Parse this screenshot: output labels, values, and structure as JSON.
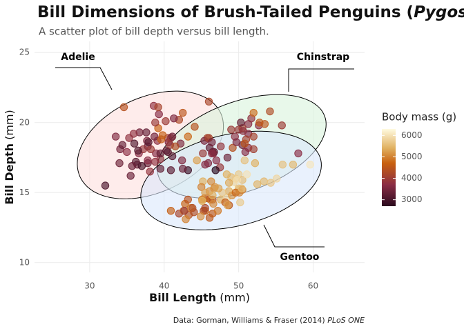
{
  "chart_data": {
    "type": "scatter",
    "title": "Bill Dimensions of Brush-Tailed Penguins (",
    "title_italic": "Pygoscelis",
    "subtitle": "A scatter plot of bill depth versus bill length.",
    "x_label": "Bill Length",
    "x_unit": " (mm)",
    "y_label": "Bill Depth",
    "y_unit": " (mm)",
    "caption": "Data: Gorman, Williams & Fraser (2014) ",
    "caption_italic": "PLoS ONE",
    "color_label": "Body mass (g)",
    "xlim": [
      22.6,
      66.9
    ],
    "xticks": [
      30,
      40,
      50,
      60
    ],
    "ylim": [
      9.3,
      25.8
    ],
    "yticks": [
      10,
      15,
      20,
      25
    ],
    "clim": [
      2700,
      6300
    ],
    "cticks": [
      3000,
      4000,
      5000,
      6000
    ],
    "colorscale": [
      [
        2700,
        "#2a0a1e"
      ],
      [
        3700,
        "#8a2d45"
      ],
      [
        4700,
        "#c8600f"
      ],
      [
        5400,
        "#e0b060"
      ],
      [
        6300,
        "#fffae0"
      ]
    ],
    "grid": true,
    "series": [
      {
        "name": "Adelie",
        "ellipse_color": "#fde0dd",
        "ellipse": {
          "center": [
            38.15,
            18.4
          ],
          "axis1": [
            9.26,
            2.46
          ],
          "axis2": [
            3.24,
            -2.96
          ]
        },
        "x": [
          36.7,
          39.1,
          39.5,
          40.3,
          39.3,
          38.9,
          39.2,
          34.1,
          42.0,
          37.8,
          37.8,
          41.1,
          38.6,
          34.6,
          36.6,
          38.7,
          42.5,
          34.4,
          46.0,
          37.8,
          37.7,
          35.9,
          38.2,
          38.8,
          35.3,
          40.6,
          40.5,
          37.9,
          40.5,
          39.5,
          37.2,
          39.5,
          40.9,
          36.4,
          39.2,
          38.8,
          42.2,
          37.6,
          39.8,
          36.5,
          40.8,
          36.0,
          44.1,
          37.0,
          39.6,
          41.1,
          36.2,
          33.5,
          32.1,
          35.7,
          41.3,
          43.2,
          34.0,
          41.5,
          35.0,
          38.1,
          45.8,
          40.2,
          35.5
        ],
        "y": [
          19.3,
          18.7,
          17.4,
          18.0,
          20.6,
          17.8,
          19.6,
          18.1,
          20.2,
          17.1,
          17.3,
          17.6,
          21.2,
          21.1,
          17.8,
          19.0,
          20.7,
          18.4,
          21.5,
          18.3,
          18.7,
          19.2,
          18.1,
          17.2,
          18.9,
          18.6,
          17.9,
          18.6,
          18.9,
          16.7,
          18.1,
          17.8,
          18.9,
          17.0,
          21.1,
          20.0,
          18.5,
          19.3,
          19.1,
          18.0,
          18.4,
          18.5,
          19.7,
          16.9,
          18.8,
          19.0,
          17.2,
          19.0,
          15.5,
          16.9,
          20.3,
          19.0,
          17.1,
          18.3,
          17.9,
          16.5,
          18.9,
          20.1,
          16.2
        ],
        "mass": [
          3450,
          3750,
          3800,
          3250,
          3650,
          3625,
          4675,
          3475,
          4250,
          3300,
          3700,
          3200,
          3800,
          4400,
          3700,
          3450,
          4500,
          3325,
          4200,
          3400,
          3600,
          3800,
          3950,
          3800,
          3800,
          3550,
          3200,
          3150,
          3950,
          3250,
          3900,
          3300,
          3900,
          3325,
          4150,
          3950,
          3550,
          3300,
          4650,
          3150,
          3900,
          3100,
          4400,
          3000,
          4600,
          3425,
          3150,
          3600,
          3050,
          3350,
          3550,
          4775,
          3400,
          4300,
          3725,
          3825,
          4150,
          3975,
          3350
        ]
      },
      {
        "name": "Chinstrap",
        "ellipse_color": "#d8f3dc",
        "ellipse": {
          "center": [
            50.4,
            18.3
          ],
          "axis1": [
            11.1,
            2.22
          ],
          "axis2": [
            2.31,
            -2.96
          ]
        },
        "x": [
          46.5,
          50.0,
          51.3,
          45.4,
          52.7,
          45.2,
          46.1,
          51.3,
          46.0,
          51.3,
          46.6,
          51.7,
          47.0,
          52.0,
          45.9,
          50.5,
          50.3,
          58.0,
          46.4,
          49.2,
          42.4,
          48.5,
          43.2,
          50.6,
          46.7,
          52.0,
          50.5,
          49.5,
          46.4,
          52.8,
          40.9,
          54.2,
          42.5,
          51.0,
          49.7,
          47.5,
          47.6,
          52.0,
          46.9,
          53.5,
          49.0,
          45.5,
          50.9,
          50.8,
          55.8
        ],
        "y": [
          17.9,
          19.5,
          19.2,
          18.7,
          19.8,
          17.8,
          18.2,
          18.2,
          18.9,
          19.9,
          17.8,
          20.3,
          17.3,
          18.1,
          17.1,
          19.6,
          20.0,
          17.8,
          18.6,
          18.2,
          17.3,
          17.5,
          16.6,
          19.4,
          17.9,
          19.0,
          18.4,
          19.0,
          17.8,
          20.0,
          16.6,
          20.8,
          16.7,
          18.8,
          18.6,
          16.8,
          18.3,
          20.7,
          16.6,
          19.9,
          19.5,
          17.0,
          17.9,
          18.5,
          19.8
        ],
        "mass": [
          3500,
          3900,
          3650,
          3525,
          3725,
          3950,
          3250,
          3750,
          4150,
          3700,
          3800,
          3775,
          3700,
          4050,
          3575,
          4050,
          3300,
          3700,
          3450,
          4400,
          3600,
          3400,
          2900,
          3800,
          3300,
          4150,
          3400,
          3800,
          3700,
          4550,
          3200,
          4300,
          3350,
          4100,
          3600,
          3900,
          3850,
          4800,
          2700,
          4500,
          3950,
          3650,
          3675,
          4450,
          4000
        ]
      },
      {
        "name": "Gentoo",
        "ellipse_color": "#dbe8fb",
        "ellipse": {
          "center": [
            48.98,
            15.86
          ],
          "axis1": [
            12.04,
            1.48
          ],
          "axis2": [
            1.39,
            -3.2
          ]
        },
        "x": [
          46.1,
          50.0,
          48.7,
          50.0,
          47.6,
          46.5,
          45.4,
          46.7,
          43.3,
          46.8,
          40.9,
          49.0,
          45.5,
          48.4,
          45.8,
          49.3,
          42.0,
          49.2,
          46.2,
          48.7,
          50.2,
          45.1,
          46.5,
          46.3,
          42.9,
          46.1,
          47.8,
          48.2,
          50.0,
          47.3,
          42.8,
          45.1,
          59.6,
          49.1,
          48.4,
          42.6,
          44.4,
          44.0,
          48.7,
          42.7,
          49.6,
          45.3,
          49.6,
          50.5,
          43.6,
          45.5,
          50.5,
          44.9,
          45.2,
          46.6,
          48.5,
          45.1,
          50.1,
          46.5,
          45.0,
          43.8,
          45.5,
          43.2,
          50.4,
          53.4,
          55.1,
          52.5,
          51.1,
          47.2,
          54.3,
          57.3,
          55.9,
          49.8,
          52.2,
          50.8
        ],
        "y": [
          13.2,
          16.3,
          14.1,
          15.2,
          14.5,
          13.5,
          14.6,
          15.3,
          13.4,
          15.4,
          13.7,
          16.1,
          13.7,
          14.6,
          14.6,
          15.7,
          13.5,
          15.2,
          14.5,
          15.1,
          14.3,
          14.5,
          14.5,
          15.8,
          13.1,
          15.1,
          15.0,
          14.3,
          15.3,
          15.3,
          14.2,
          14.5,
          17.0,
          14.8,
          16.3,
          13.7,
          17.3,
          13.6,
          15.7,
          13.7,
          16.0,
          13.7,
          15.0,
          15.9,
          13.9,
          13.9,
          15.2,
          13.3,
          15.8,
          14.2,
          14.1,
          14.4,
          15.0,
          14.8,
          15.4,
          13.9,
          15.0,
          14.5,
          15.3,
          15.8,
          16.0,
          15.6,
          16.3,
          13.7,
          15.7,
          17.0,
          17.0,
          15.9,
          17.1,
          17.3
        ],
        "mass": [
          4500,
          5700,
          4450,
          5700,
          5400,
          4550,
          4800,
          5200,
          4400,
          5150,
          4650,
          5550,
          4650,
          5850,
          4200,
          5850,
          4150,
          6300,
          4800,
          5350,
          5700,
          5000,
          4400,
          5050,
          5000,
          5100,
          5650,
          4600,
          5550,
          5250,
          4700,
          5050,
          6050,
          5150,
          5400,
          4950,
          5250,
          4350,
          5350,
          3950,
          5700,
          4300,
          4750,
          5550,
          4900,
          4200,
          5000,
          5100,
          5400,
          5050,
          5250,
          5400,
          5000,
          5400,
          5000,
          4300,
          5250,
          4450,
          5550,
          5500,
          5850,
          5450,
          6000,
          4925,
          5650,
          5500,
          5600,
          5950,
          5400,
          5600
        ]
      }
    ]
  }
}
